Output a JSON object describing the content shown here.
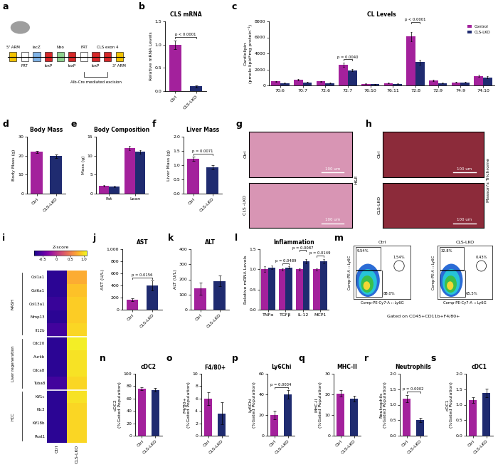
{
  "chart_data": [
    {
      "panel": "a",
      "type": "diagram",
      "elements": [
        "5' ARM",
        "FRT",
        "lacZ",
        "loxP",
        "Neo",
        "loxP",
        "FRT",
        "loxP",
        "CLS exon 4",
        "3' ARM"
      ],
      "colors": [
        "#f2c200",
        "#ffffff",
        "#7fb3e6",
        "#d62728",
        "#8fd18f",
        "#d62728",
        "#ffffff",
        "#d62728",
        "#d62728",
        "#f2c200"
      ],
      "caption": "Alb-Cre mediated excision"
    },
    {
      "panel": "b",
      "type": "bar",
      "title": "CLS mRNA",
      "ylabel": "Relative mRNA Levels",
      "categories": [
        "Ctrl",
        "CLS-LKO"
      ],
      "values": [
        1.0,
        0.1
      ],
      "errors": [
        0.09,
        0.02
      ],
      "colors": [
        "#a3219c",
        "#1f2b70"
      ],
      "ylim": [
        0.0,
        1.5
      ],
      "yticks": [
        0.0,
        0.5,
        1.0,
        1.5
      ],
      "annotations": [
        "p < 0.0001"
      ]
    },
    {
      "panel": "c",
      "type": "bar",
      "title": "CL Levels",
      "ylabel": "Cardiolipin\n(pmole lipid*mg protein⁻¹)",
      "categories": [
        "70:6",
        "70:7",
        "72:6",
        "72:7",
        "76:10",
        "76:11",
        "72:8",
        "72:9",
        "74:9",
        "74:10"
      ],
      "series": [
        {
          "name": "Control",
          "color": "#a3219c",
          "values": [
            500,
            700,
            500,
            2600,
            200,
            300,
            6100,
            600,
            400,
            1200
          ],
          "errors": [
            60,
            80,
            60,
            250,
            30,
            40,
            600,
            80,
            60,
            150
          ]
        },
        {
          "name": "CLS-LKO",
          "color": "#1f2b70",
          "values": [
            300,
            400,
            300,
            1900,
            150,
            200,
            2900,
            300,
            400,
            1000
          ],
          "errors": [
            40,
            50,
            40,
            150,
            20,
            30,
            300,
            40,
            50,
            120
          ]
        }
      ],
      "ylim": [
        0,
        8000
      ],
      "yticks": [
        0,
        2000,
        4000,
        6000,
        8000
      ],
      "legend": "upper right",
      "annotations": [
        {
          "text": "p = 0.0040",
          "category": "72:7"
        },
        {
          "text": "p < 0.0001",
          "category": "72:8"
        }
      ]
    },
    {
      "panel": "d",
      "type": "bar",
      "title": "Body Mass",
      "ylabel": "Body Mass (g)",
      "categories": [
        "Ctrl",
        "CLS-LKO"
      ],
      "values": [
        22.0,
        19.8
      ],
      "errors": [
        0.6,
        1.0
      ],
      "colors": [
        "#a3219c",
        "#1f2b70"
      ],
      "ylim": [
        0,
        30
      ],
      "yticks": [
        0,
        10,
        20,
        30
      ]
    },
    {
      "panel": "e",
      "type": "bar",
      "title": "Body Composition",
      "ylabel": "Mass (g)",
      "categories": [
        "Fat",
        "Lean"
      ],
      "series": [
        {
          "color": "#a3219c",
          "values": [
            2.0,
            12.0
          ],
          "errors": [
            0.2,
            0.6
          ]
        },
        {
          "color": "#1f2b70",
          "values": [
            1.9,
            11.0
          ],
          "errors": [
            0.2,
            0.5
          ]
        }
      ],
      "ylim": [
        0,
        15
      ],
      "yticks": [
        0,
        5,
        10,
        15
      ]
    },
    {
      "panel": "f",
      "type": "bar",
      "title": "Liver Mass",
      "ylabel": "Liver Mass (g)",
      "categories": [
        "Ctrl",
        "CLS-LKO"
      ],
      "values": [
        1.22,
        0.93
      ],
      "errors": [
        0.08,
        0.07
      ],
      "colors": [
        "#a3219c",
        "#1f2b70"
      ],
      "ylim": [
        0.0,
        2.0
      ],
      "yticks": [
        0.0,
        0.5,
        1.0,
        1.5,
        2.0
      ],
      "annotations": [
        "p = 0.0071"
      ]
    },
    {
      "panel": "g",
      "type": "image",
      "side_label": "H&E",
      "color": "#d895b4",
      "images": [
        {
          "label": "Ctrl",
          "scale_bar": "100 um"
        },
        {
          "label": "CLS -LKO",
          "scale_bar": "100 um"
        }
      ]
    },
    {
      "panel": "h",
      "type": "image",
      "side_label": "Masson's Trichrome",
      "color": "#8c2b3a",
      "images": [
        {
          "label": "Ctrl",
          "scale_bar": "100 um"
        },
        {
          "label": "CLS-LKO",
          "scale_bar": "100 um"
        }
      ]
    },
    {
      "panel": "i",
      "type": "heatmap",
      "columns": [
        "Ctrl",
        "CLS-LKO"
      ],
      "groups": [
        {
          "name": "MASH",
          "rows": [
            "Col1a1",
            "Col6a1",
            "Col13a1",
            "Mmp13",
            "Il12b"
          ],
          "cells": [
            [
              -0.7,
              0.75
            ],
            [
              -0.7,
              0.85
            ],
            [
              -0.65,
              0.9
            ],
            [
              -0.7,
              0.9
            ],
            [
              -0.6,
              0.95
            ]
          ]
        },
        {
          "name": "Liver regeneration",
          "rows": [
            "Cdc20",
            "Aurkb",
            "Cdca8",
            "Tuba8"
          ],
          "cells": [
            [
              -0.7,
              1.05
            ],
            [
              -0.7,
              1.0
            ],
            [
              -0.7,
              1.0
            ],
            [
              -0.6,
              0.95
            ]
          ]
        },
        {
          "name": "HCC",
          "rows": [
            "Kif1c",
            "Klc3",
            "Kif18b",
            "Psat1"
          ],
          "cells": [
            [
              -0.7,
              1.0
            ],
            [
              -0.7,
              0.95
            ],
            [
              -0.7,
              0.95
            ],
            [
              -0.7,
              0.95
            ]
          ]
        }
      ],
      "colorbar": {
        "title": "Z-score",
        "range": [
          -0.8,
          1.1
        ],
        "ticks": [
          -0.5,
          0,
          0.5,
          1.0
        ]
      }
    },
    {
      "panel": "j",
      "type": "bar",
      "title": "AST",
      "ylabel": "AST (U/L)",
      "categories": [
        "Ctrl",
        "CLS-LKO"
      ],
      "values": [
        165,
        400
      ],
      "errors": [
        25,
        80
      ],
      "colors": [
        "#a3219c",
        "#1f2b70"
      ],
      "ylim": [
        0,
        1000
      ],
      "yticks": [
        0,
        200,
        400,
        600,
        800,
        {
          "value": 1000,
          "label": "1,000"
        }
      ],
      "annotations": [
        "p = 0.0156"
      ]
    },
    {
      "panel": "k",
      "type": "bar",
      "title": "ALT",
      "ylabel": "ALT (U/L)",
      "categories": [
        "Ctrl",
        "CLS-LKO"
      ],
      "values": [
        140,
        190
      ],
      "errors": [
        40,
        35
      ],
      "colors": [
        "#a3219c",
        "#1f2b70"
      ],
      "ylim": [
        0,
        400
      ],
      "yticks": [
        0,
        100,
        200,
        300,
        400
      ]
    },
    {
      "panel": "l",
      "type": "bar",
      "title": "Inflammation",
      "ylabel": "Relative mRNA Levels",
      "categories": [
        "TNFα",
        "TGFβ",
        "IL-12",
        "MCP1"
      ],
      "series": [
        {
          "color": "#a3219c",
          "values": [
            1.0,
            1.0,
            1.0,
            1.0
          ],
          "errors": [
            0.07,
            0.03,
            0.03,
            0.03
          ]
        },
        {
          "color": "#1f2b70",
          "values": [
            1.05,
            1.05,
            1.2,
            1.2
          ],
          "errors": [
            0.05,
            0.02,
            0.05,
            0.06
          ]
        }
      ],
      "ylim": [
        0.0,
        1.5
      ],
      "yticks": [
        0.0,
        0.5,
        1.0,
        1.5
      ],
      "annotations": [
        {
          "text": "p = 0.0489",
          "category": "TGFβ"
        },
        {
          "text": "p = 0.0087",
          "category": "IL-12"
        },
        {
          "text": "p = 0.0149",
          "category": "MCP1"
        }
      ]
    },
    {
      "panel": "m",
      "type": "flow_cytometry",
      "xlabel": "Comp-PE-Cy7-A :: Ly6G",
      "ylabel": "Comp-PE-A :: Ly6C",
      "note": "Gated on CD45+CD11b+F4/80+",
      "plots": [
        {
          "title": "Ctrl",
          "gates": [
            "9.54%",
            "1.54%",
            "88.0%"
          ]
        },
        {
          "title": "CLS-LKO",
          "gates": [
            "32.8%",
            "0.43%",
            "65.5%"
          ]
        }
      ]
    },
    {
      "panel": "n",
      "type": "bar",
      "title": "cDC2",
      "ylabel": "cDC2\n(%Gated Population)",
      "categories": [
        "Ctrl",
        "CLS-LKO"
      ],
      "values": [
        76,
        74
      ],
      "errors": [
        2.5,
        2.5
      ],
      "colors": [
        "#a3219c",
        "#1f2b70"
      ],
      "ylim": [
        0,
        100
      ],
      "yticks": [
        0,
        20,
        40,
        60,
        80,
        100
      ]
    },
    {
      "panel": "o",
      "type": "bar",
      "title": "F4/80+",
      "ylabel": "F4/80+\n(%Gated Population)",
      "categories": [
        "Ctrl",
        "CLS-LKO"
      ],
      "values": [
        6.0,
        3.6
      ],
      "errors": [
        1.0,
        1.8
      ],
      "colors": [
        "#a3219c",
        "#1f2b70"
      ],
      "ylim": [
        0,
        10
      ],
      "yticks": [
        0,
        2,
        4,
        6,
        8,
        10
      ]
    },
    {
      "panel": "p",
      "type": "bar",
      "title": "Ly6Chi",
      "ylabel": "Ly6Chi\n(%Gated Population)",
      "categories": [
        "Ctrl",
        "CLS-LKO"
      ],
      "values": [
        20,
        40
      ],
      "errors": [
        4,
        4
      ],
      "colors": [
        "#a3219c",
        "#1f2b70"
      ],
      "ylim": [
        0,
        60
      ],
      "yticks": [
        0,
        20,
        40,
        60
      ],
      "annotations": [
        "p = 0.0034"
      ]
    },
    {
      "panel": "q",
      "type": "bar",
      "title": "MHC-II",
      "ylabel": "MHC-II\n(%Gated Population)",
      "categories": [
        "Ctrl",
        "CLS-LKO"
      ],
      "values": [
        20.5,
        18.0
      ],
      "errors": [
        1.5,
        1.3
      ],
      "colors": [
        "#a3219c",
        "#1f2b70"
      ],
      "ylim": [
        0,
        30
      ],
      "yticks": [
        0,
        10,
        20,
        30
      ]
    },
    {
      "panel": "r",
      "type": "bar",
      "title": "Neutrophils",
      "ylabel": "Neutrophils\n(%Gated Population)",
      "categories": [
        "Ctrl",
        "CLS-LKO"
      ],
      "values": [
        1.2,
        0.5
      ],
      "errors": [
        0.12,
        0.07
      ],
      "colors": [
        "#a3219c",
        "#1f2b70"
      ],
      "ylim": [
        0.0,
        2.0
      ],
      "yticks": [
        0.0,
        0.5,
        1.0,
        1.5,
        2.0
      ],
      "annotations": [
        "p = 0.0002"
      ]
    },
    {
      "panel": "s",
      "type": "bar",
      "title": "cDC1",
      "ylabel": "cDC1\n(%Gated Population)",
      "categories": [
        "Ctrl",
        "CLS-LKO"
      ],
      "values": [
        1.15,
        1.38
      ],
      "errors": [
        0.1,
        0.13
      ],
      "colors": [
        "#a3219c",
        "#1f2b70"
      ],
      "ylim": [
        0.0,
        2.0
      ],
      "yticks": [
        0.0,
        0.5,
        1.0,
        1.5,
        2.0
      ]
    }
  ]
}
